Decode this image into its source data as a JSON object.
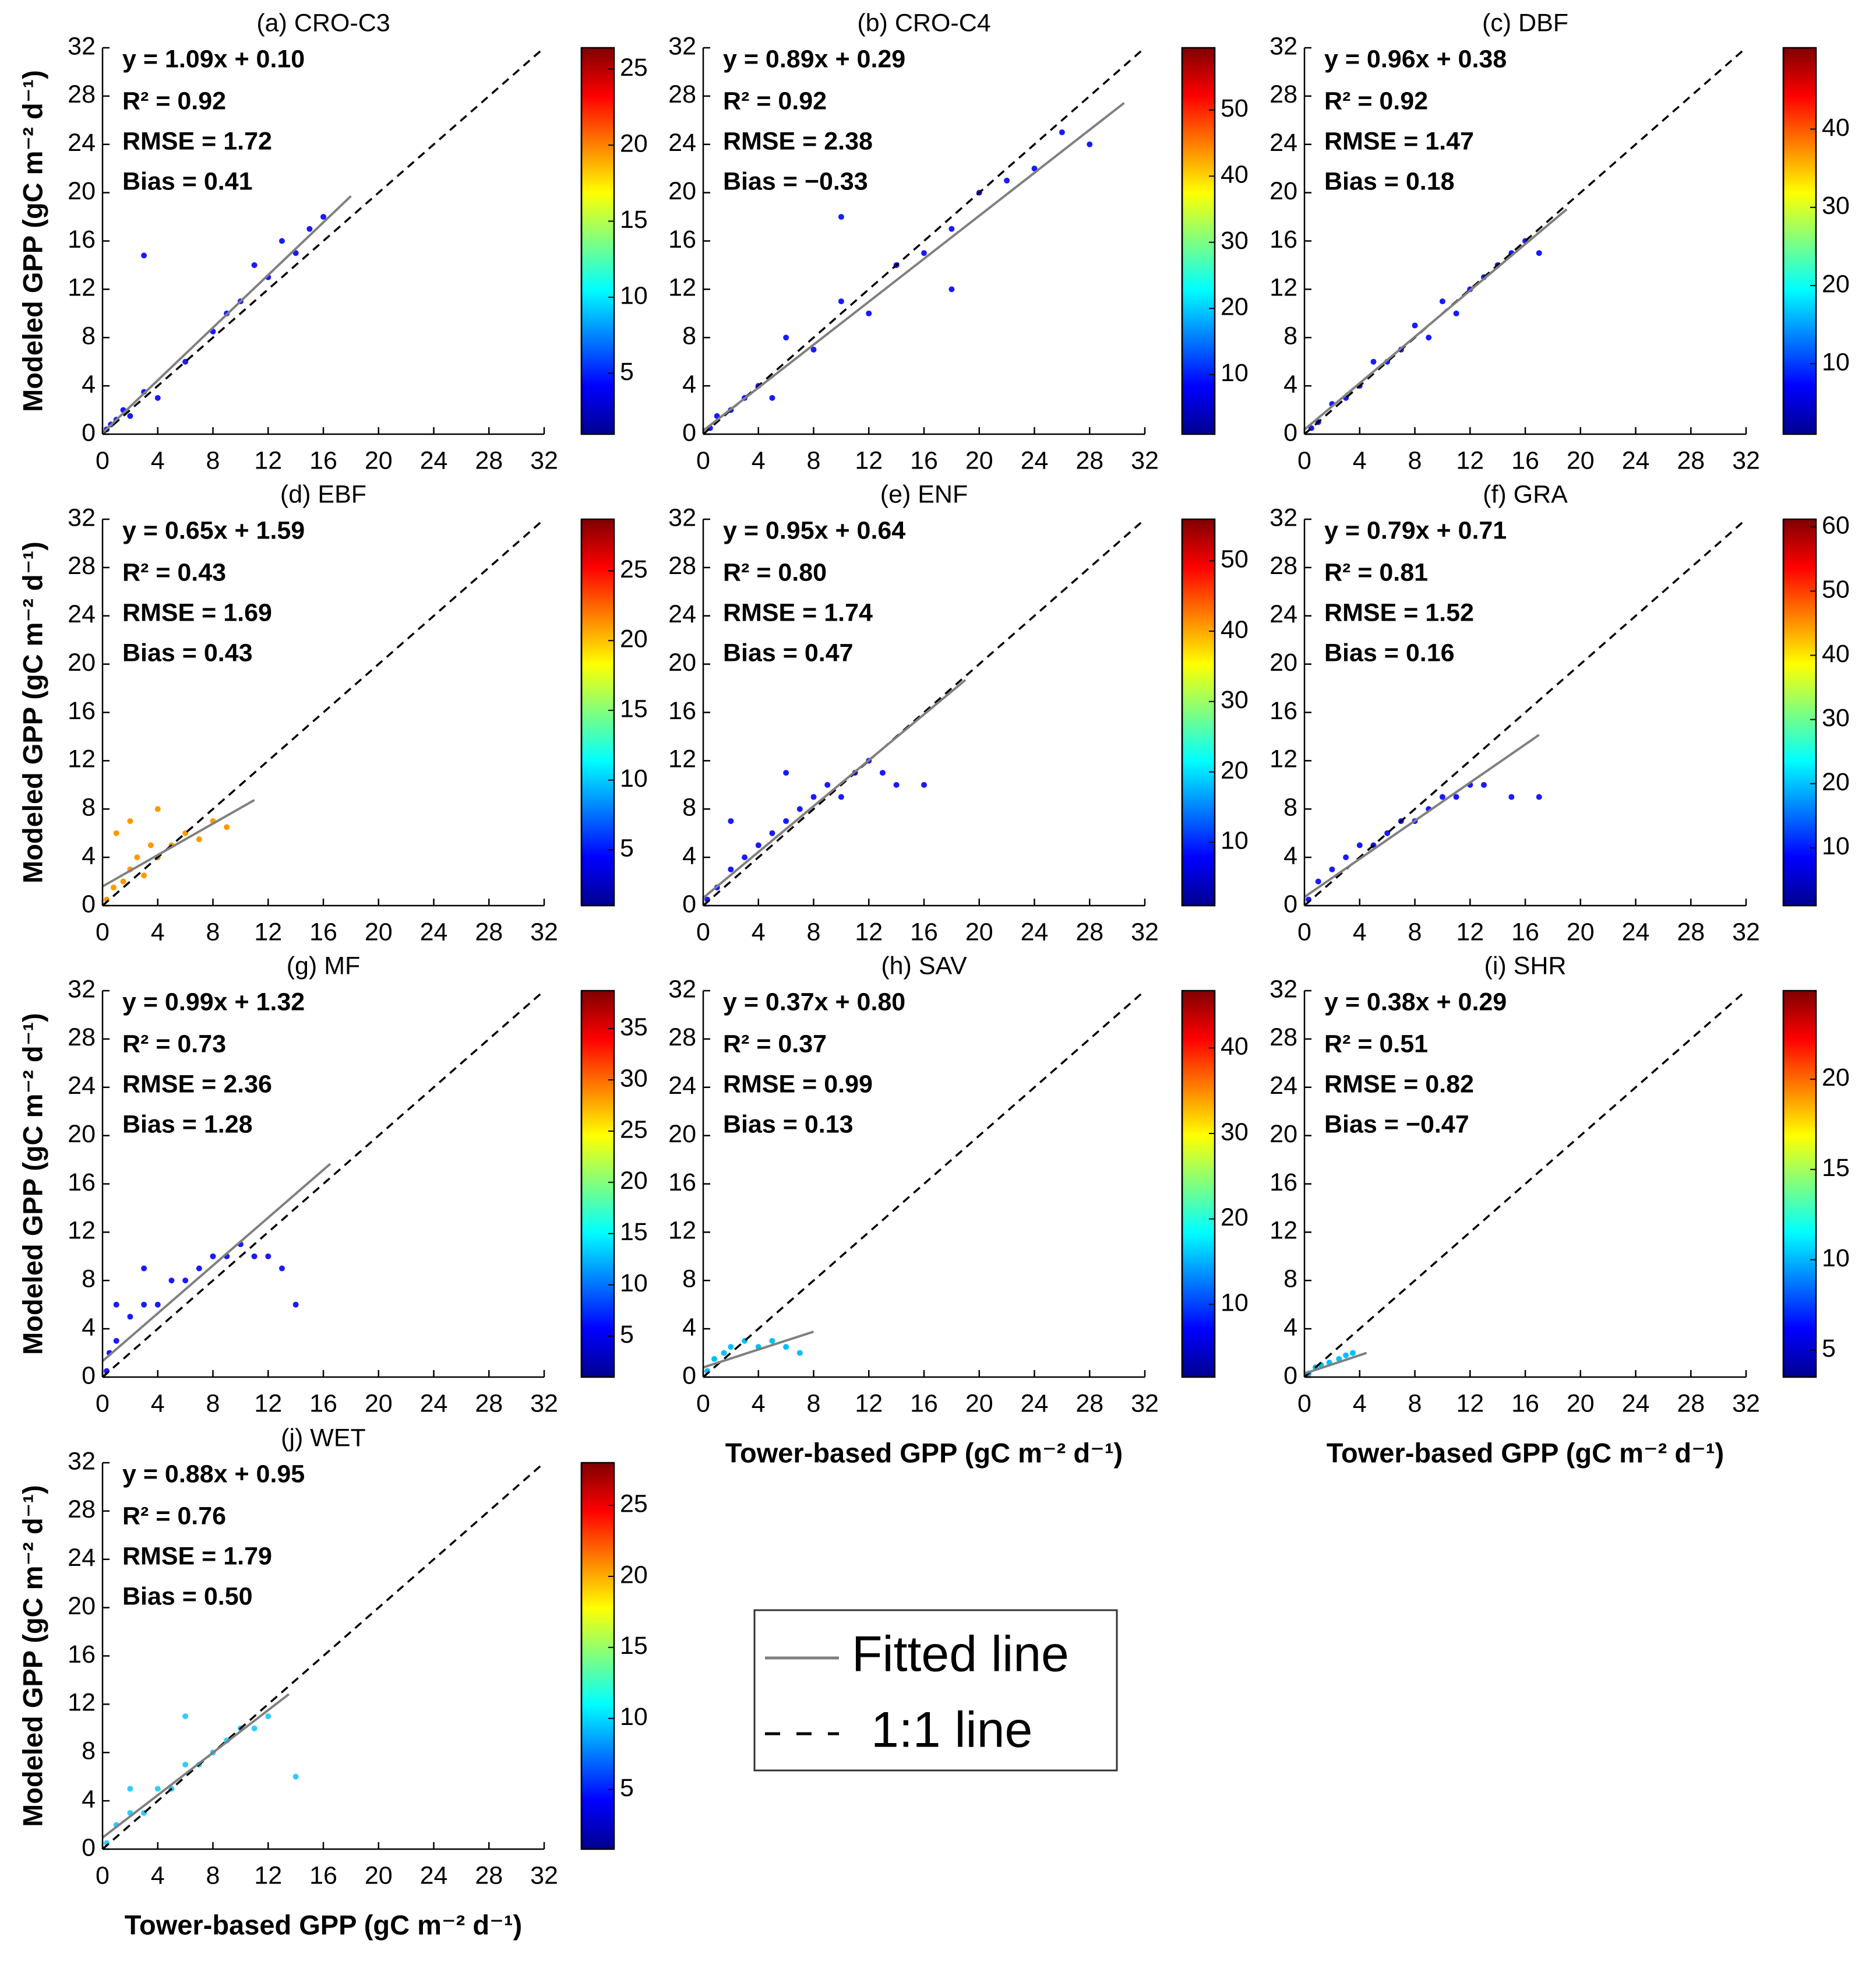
{
  "chart_data": [
    {
      "type": "scatter",
      "title": "(a) CRO-C3",
      "stats": [
        "y = 1.09x + 0.10",
        "R² = 0.92",
        "RMSE = 1.72",
        "Bias = 0.41"
      ],
      "ylabel": "Modeled GPP (gC m⁻² d⁻¹)",
      "xlim": [
        0,
        32
      ],
      "ylim": [
        0,
        32
      ],
      "xticks": [
        0,
        4,
        8,
        12,
        16,
        20,
        24,
        28,
        32
      ],
      "yticks": [
        0,
        4,
        8,
        12,
        16,
        20,
        24,
        28,
        32
      ],
      "points": {
        "x": [
          0.3,
          0.6,
          1,
          1.5,
          2,
          3,
          4,
          6,
          8,
          9,
          10,
          11,
          12,
          13,
          14,
          15,
          16,
          3
        ],
        "y": [
          0.4,
          0.8,
          1.2,
          2,
          1.5,
          3.5,
          3,
          6,
          8.5,
          10,
          11,
          14,
          13,
          16,
          15,
          17,
          18,
          14.8
        ]
      },
      "point_color": "#1a1aff",
      "fit": {
        "x": [
          0,
          18
        ],
        "y": [
          0.1,
          19.72
        ]
      },
      "fit_color": "#808080",
      "ref_line": [
        0,
        32
      ],
      "clim": [
        1,
        26.4
      ],
      "cticks": [
        5,
        10,
        15,
        20,
        25
      ]
    },
    {
      "type": "scatter",
      "title": "(b) CRO-C4",
      "stats": [
        "y = 0.89x + 0.29",
        "R² = 0.92",
        "RMSE = 2.38",
        "Bias = −0.33"
      ],
      "xlim": [
        0,
        32
      ],
      "ylim": [
        0,
        32
      ],
      "xticks": [
        0,
        4,
        8,
        12,
        16,
        20,
        24,
        28,
        32
      ],
      "yticks": [
        0,
        4,
        8,
        12,
        16,
        20,
        24,
        28,
        32
      ],
      "points": {
        "x": [
          0.5,
          1,
          2,
          3,
          4,
          5,
          6,
          8,
          10,
          12,
          14,
          16,
          18,
          20,
          22,
          24,
          26,
          28,
          10,
          18
        ],
        "y": [
          0.5,
          1.5,
          2,
          3,
          4,
          3,
          8,
          7,
          11,
          10,
          14,
          15,
          17,
          20,
          21,
          22,
          25,
          24,
          18,
          12
        ]
      },
      "point_color": "#1a1aff",
      "fit": {
        "x": [
          0,
          30.5
        ],
        "y": [
          0.29,
          27.43
        ]
      },
      "fit_color": "#808080",
      "ref_line": [
        0,
        32
      ],
      "clim": [
        1,
        59.4
      ],
      "cticks": [
        10,
        20,
        30,
        40,
        50
      ]
    },
    {
      "type": "scatter",
      "title": "(c) DBF",
      "stats": [
        "y = 0.96x + 0.38",
        "R² = 0.92",
        "RMSE = 1.47",
        "Bias = 0.18"
      ],
      "xlim": [
        0,
        32
      ],
      "ylim": [
        0,
        32
      ],
      "xticks": [
        0,
        4,
        8,
        12,
        16,
        20,
        24,
        28,
        32
      ],
      "yticks": [
        0,
        4,
        8,
        12,
        16,
        20,
        24,
        28,
        32
      ],
      "points": {
        "x": [
          0.5,
          1,
          2,
          3,
          4,
          5,
          6,
          7,
          8,
          9,
          10,
          11,
          12,
          13,
          14,
          15,
          16,
          17
        ],
        "y": [
          0.5,
          1,
          2.5,
          3,
          4,
          6,
          6,
          7,
          9,
          8,
          11,
          10,
          12,
          13,
          14,
          15,
          16,
          15
        ]
      },
      "point_color": "#1a1aff",
      "fit": {
        "x": [
          0,
          19
        ],
        "y": [
          0.38,
          18.62
        ]
      },
      "fit_color": "#808080",
      "ref_line": [
        0,
        32
      ],
      "clim": [
        1,
        50.4
      ],
      "cticks": [
        10,
        20,
        30,
        40
      ]
    },
    {
      "type": "scatter",
      "title": "(d) EBF",
      "stats": [
        "y = 0.65x + 1.59",
        "R² = 0.43",
        "RMSE = 1.69",
        "Bias = 0.43"
      ],
      "ylabel": "Modeled GPP (gC m⁻² d⁻¹)",
      "xlim": [
        0,
        32
      ],
      "ylim": [
        0,
        32
      ],
      "xticks": [
        0,
        4,
        8,
        12,
        16,
        20,
        24,
        28,
        32
      ],
      "yticks": [
        0,
        4,
        8,
        12,
        16,
        20,
        24,
        28,
        32
      ],
      "points": {
        "x": [
          0.3,
          0.8,
          1.5,
          2,
          2.5,
          3,
          3.5,
          4,
          5,
          6,
          7,
          8,
          9,
          1,
          2,
          4
        ],
        "y": [
          0.5,
          1.5,
          2,
          3,
          4,
          2.5,
          5,
          4,
          5,
          6,
          5.5,
          7,
          6.5,
          6,
          7,
          8
        ]
      },
      "point_color": "#ff9900",
      "fit": {
        "x": [
          0,
          11
        ],
        "y": [
          1.59,
          8.74
        ]
      },
      "fit_color": "#808080",
      "ref_line": [
        0,
        32
      ],
      "clim": [
        1,
        28.7
      ],
      "cticks": [
        5,
        10,
        15,
        20,
        25
      ]
    },
    {
      "type": "scatter",
      "title": "(e) ENF",
      "stats": [
        "y = 0.95x + 0.64",
        "R² = 0.80",
        "RMSE = 1.74",
        "Bias = 0.47"
      ],
      "xlim": [
        0,
        32
      ],
      "ylim": [
        0,
        32
      ],
      "xticks": [
        0,
        4,
        8,
        12,
        16,
        20,
        24,
        28,
        32
      ],
      "yticks": [
        0,
        4,
        8,
        12,
        16,
        20,
        24,
        28,
        32
      ],
      "points": {
        "x": [
          0.3,
          1,
          2,
          3,
          4,
          5,
          6,
          7,
          8,
          9,
          10,
          11,
          12,
          13,
          14,
          16,
          2,
          6
        ],
        "y": [
          0.5,
          1.5,
          3,
          4,
          5,
          6,
          7,
          8,
          9,
          10,
          9,
          11,
          12,
          11,
          10,
          10,
          7,
          11
        ]
      },
      "point_color": "#1a1aff",
      "fit": {
        "x": [
          0,
          19
        ],
        "y": [
          0.64,
          18.69
        ]
      },
      "fit_color": "#808080",
      "ref_line": [
        0,
        32
      ],
      "clim": [
        1,
        55.9
      ],
      "cticks": [
        10,
        20,
        30,
        40,
        50
      ]
    },
    {
      "type": "scatter",
      "title": "(f) GRA",
      "stats": [
        "y = 0.79x + 0.71",
        "R² = 0.81",
        "RMSE = 1.52",
        "Bias = 0.16"
      ],
      "xlim": [
        0,
        32
      ],
      "ylim": [
        0,
        32
      ],
      "xticks": [
        0,
        4,
        8,
        12,
        16,
        20,
        24,
        28,
        32
      ],
      "yticks": [
        0,
        4,
        8,
        12,
        16,
        20,
        24,
        28,
        32
      ],
      "points": {
        "x": [
          0.3,
          1,
          2,
          3,
          4,
          5,
          6,
          7,
          8,
          9,
          10,
          11,
          12,
          13,
          15,
          17
        ],
        "y": [
          0.5,
          2,
          3,
          4,
          5,
          5,
          6,
          7,
          7,
          8,
          9,
          9,
          10,
          10,
          9,
          9
        ]
      },
      "point_color": "#1a1aff",
      "fit": {
        "x": [
          0,
          17
        ],
        "y": [
          0.71,
          14.14
        ]
      },
      "fit_color": "#808080",
      "ref_line": [
        0,
        32
      ],
      "clim": [
        1,
        61.2
      ],
      "cticks": [
        10,
        20,
        30,
        40,
        50,
        60
      ]
    },
    {
      "type": "scatter",
      "title": "(g) MF",
      "stats": [
        "y = 0.99x + 1.32",
        "R² = 0.73",
        "RMSE = 2.36",
        "Bias = 1.28"
      ],
      "ylabel": "Modeled GPP (gC m⁻² d⁻¹)",
      "xlim": [
        0,
        32
      ],
      "ylim": [
        0,
        32
      ],
      "xticks": [
        0,
        4,
        8,
        12,
        16,
        20,
        24,
        28,
        32
      ],
      "yticks": [
        0,
        4,
        8,
        12,
        16,
        20,
        24,
        28,
        32
      ],
      "points": {
        "x": [
          0.3,
          0.5,
          1,
          2,
          3,
          4,
          5,
          6,
          7,
          8,
          9,
          10,
          11,
          12,
          13,
          14,
          1,
          3
        ],
        "y": [
          0.5,
          2,
          3,
          5,
          6,
          6,
          8,
          8,
          9,
          10,
          10,
          11,
          10,
          10,
          9,
          6,
          6,
          9
        ]
      },
      "point_color": "#1a1aff",
      "fit": {
        "x": [
          0,
          16.5
        ],
        "y": [
          1.32,
          17.66
        ]
      },
      "fit_color": "#808080",
      "ref_line": [
        0,
        32
      ],
      "clim": [
        1,
        38.7
      ],
      "cticks": [
        5,
        10,
        15,
        20,
        25,
        30,
        35
      ]
    },
    {
      "type": "scatter",
      "title": "(h) SAV",
      "stats": [
        "y = 0.37x + 0.80",
        "R² = 0.37",
        "RMSE = 0.99",
        "Bias = 0.13"
      ],
      "xlabel": "Tower-based GPP (gC m⁻² d⁻¹)",
      "xlim": [
        0,
        32
      ],
      "ylim": [
        0,
        32
      ],
      "xticks": [
        0,
        4,
        8,
        12,
        16,
        20,
        24,
        28,
        32
      ],
      "yticks": [
        0,
        4,
        8,
        12,
        16,
        20,
        24,
        28,
        32
      ],
      "points": {
        "x": [
          0.3,
          0.8,
          1.5,
          2,
          3,
          4,
          5,
          6,
          7
        ],
        "y": [
          0.5,
          1.5,
          2,
          2.5,
          3,
          2.5,
          3,
          2.5,
          2
        ]
      },
      "point_color": "#00bfff",
      "fit": {
        "x": [
          0,
          8
        ],
        "y": [
          0.8,
          3.76
        ]
      },
      "fit_color": "#808080",
      "ref_line": [
        0,
        32
      ],
      "clim": [
        1.5,
        46.7
      ],
      "cticks": [
        10,
        20,
        30,
        40
      ]
    },
    {
      "type": "scatter",
      "title": "(i) SHR",
      "stats": [
        "y = 0.38x + 0.29",
        "R² = 0.51",
        "RMSE = 0.82",
        "Bias = −0.47"
      ],
      "xlabel": "Tower-based GPP (gC m⁻² d⁻¹)",
      "xlim": [
        0,
        32
      ],
      "ylim": [
        0,
        32
      ],
      "xticks": [
        0,
        4,
        8,
        12,
        16,
        20,
        24,
        28,
        32
      ],
      "yticks": [
        0,
        4,
        8,
        12,
        16,
        20,
        24,
        28,
        32
      ],
      "points": {
        "x": [
          0.3,
          0.8,
          1.2,
          1.8,
          2.5,
          3,
          3.5
        ],
        "y": [
          0.3,
          0.8,
          1,
          1.2,
          1.5,
          1.8,
          2
        ]
      },
      "point_color": "#00bfff",
      "fit": {
        "x": [
          0,
          4.5
        ],
        "y": [
          0.29,
          2.0
        ]
      },
      "fit_color": "#808080",
      "ref_line": [
        0,
        32
      ],
      "clim": [
        3.5,
        24.9
      ],
      "cticks": [
        5,
        10,
        15,
        20
      ]
    },
    {
      "type": "scatter",
      "title": "(j) WET",
      "stats": [
        "y = 0.88x + 0.95",
        "R² = 0.76",
        "RMSE = 1.79",
        "Bias = 0.50"
      ],
      "ylabel": "Modeled GPP (gC m⁻² d⁻¹)",
      "xlabel": "Tower-based GPP (gC m⁻² d⁻¹)",
      "xlim": [
        0,
        32
      ],
      "ylim": [
        0,
        32
      ],
      "xticks": [
        0,
        4,
        8,
        12,
        16,
        20,
        24,
        28,
        32
      ],
      "yticks": [
        0,
        4,
        8,
        12,
        16,
        20,
        24,
        28,
        32
      ],
      "points": {
        "x": [
          0.3,
          1,
          2,
          3,
          4,
          5,
          6,
          7,
          8,
          9,
          10,
          11,
          12,
          14,
          2,
          6
        ],
        "y": [
          0.5,
          2,
          3,
          3,
          5,
          5,
          7,
          7,
          8,
          9,
          10,
          10,
          11,
          6,
          5,
          11
        ]
      },
      "point_color": "#33ccff",
      "fit": {
        "x": [
          0,
          13.5
        ],
        "y": [
          0.95,
          12.83
        ]
      },
      "fit_color": "#808080",
      "ref_line": [
        0,
        32
      ],
      "clim": [
        0.8,
        28
      ],
      "cticks": [
        5,
        10,
        15,
        20,
        25
      ]
    }
  ],
  "legend": {
    "items": [
      "Fitted line",
      "1:1 line"
    ]
  }
}
